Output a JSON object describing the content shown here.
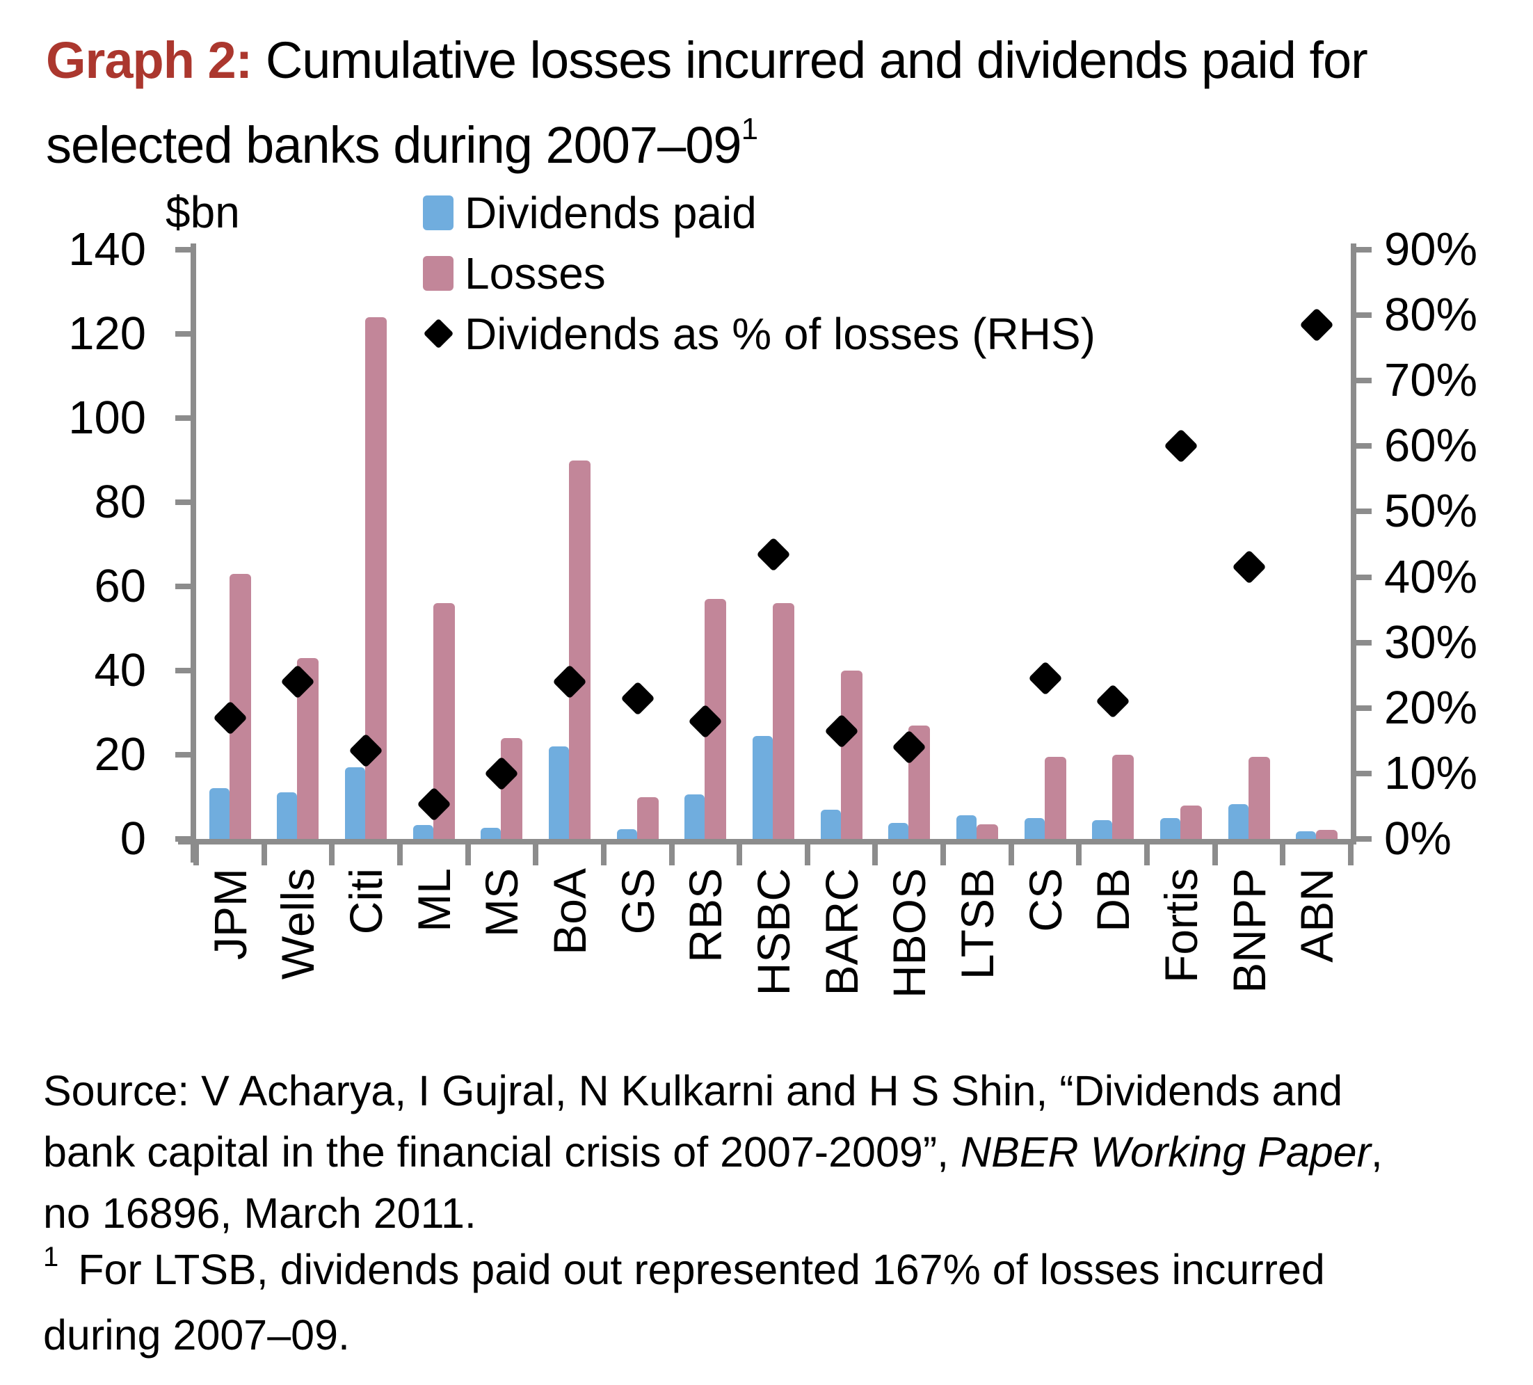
{
  "title": {
    "label": "Graph 2:",
    "text": " Cumulative losses incurred and dividends paid for selected banks during 2007–09",
    "superscript": "1",
    "accent_color": "#ab372e"
  },
  "chart_data": {
    "type": "bar",
    "title": "Graph 2: Cumulative losses incurred and dividends paid for selected banks during 2007–09",
    "categories": [
      "JPM",
      "Wells",
      "Citi",
      "ML",
      "MS",
      "BoA",
      "GS",
      "RBS",
      "HSBC",
      "BARC",
      "HBOS",
      "LTSB",
      "CS",
      "DB",
      "Fortis",
      "BNPP",
      "ABN"
    ],
    "series": [
      {
        "name": "Dividends paid",
        "type": "bar",
        "axis": "left",
        "color": "#70adde",
        "values": [
          12,
          11,
          17,
          3.3,
          2.7,
          22,
          2.3,
          10.5,
          24.5,
          7,
          3.8,
          5.6,
          5,
          4.5,
          5,
          8.3,
          1.8
        ]
      },
      {
        "name": "Losses",
        "type": "bar",
        "axis": "left",
        "color": "#c28699",
        "values": [
          63,
          43,
          124,
          56,
          24,
          90,
          10,
          57,
          56,
          40,
          27,
          3.4,
          19.5,
          20,
          8,
          19.5,
          2.1
        ]
      },
      {
        "name": "Dividends as % of losses (RHS)",
        "type": "scatter",
        "marker": "diamond",
        "axis": "right",
        "color": "#000000",
        "values": [
          18.5,
          24,
          13.5,
          5.3,
          10,
          24,
          21.5,
          18,
          43.5,
          16.5,
          14,
          null,
          24.5,
          21,
          60,
          41.5,
          78.5
        ]
      }
    ],
    "left_axis": {
      "label": "$bn",
      "min": 0,
      "max": 140,
      "step": 20
    },
    "right_axis": {
      "min": 0,
      "max": 90,
      "step": 10,
      "suffix": "%"
    },
    "axis_color": "#8c8c8c",
    "legend_position": "top-left-inside",
    "grid": false
  },
  "footer": {
    "source_line1": "Source: V Acharya, I Gujral, N Kulkarni and H S Shin, “Dividends and",
    "source_line2_pre": "bank capital in the financial crisis of 2007-2009”, ",
    "source_line2_italic": "NBER Working Paper",
    "source_line2_post": ",",
    "source_line3": "no 16896, March 2011.",
    "footnote_marker": "1",
    "footnote_line1": "For LTSB, dividends paid out represented 167% of losses incurred",
    "footnote_line2": "during 2007–09."
  }
}
